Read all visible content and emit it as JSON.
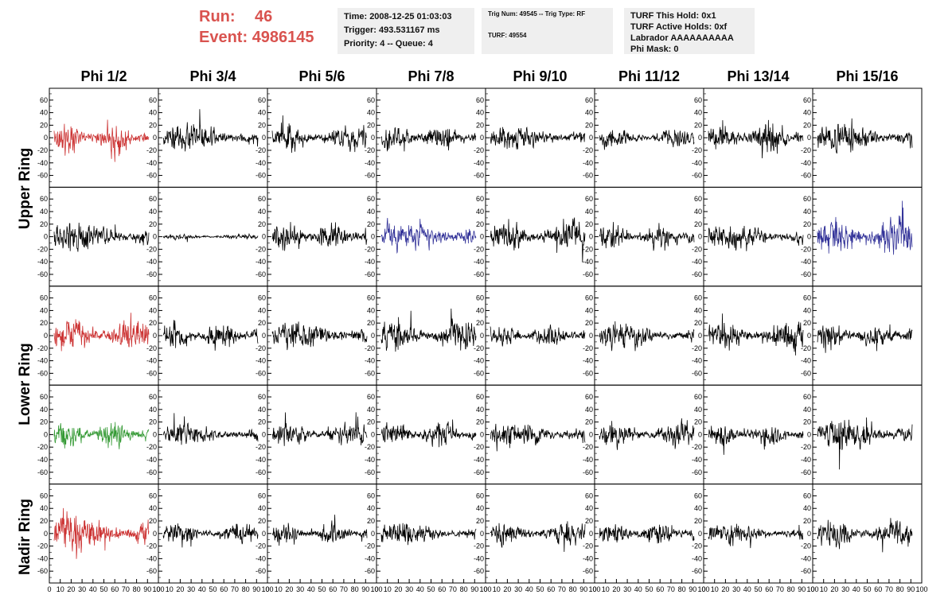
{
  "header": {
    "run_label": "Run:",
    "run_value": "46",
    "event_label": "Event:",
    "event_value": "4986145",
    "time": "Time: 2008-12-25 01:03:03",
    "trigger": "Trigger: 493.531167 ms",
    "priority": "Priority: 4 -- Queue: 4",
    "trig_num": "Trig Num: 49545 -- Trig Type: RF",
    "turf": "TURF: 49554",
    "turf_this_hold": "TURF This Hold: 0x1",
    "turf_active_holds": "TURF Active Holds: 0xf",
    "labrador": "Labrador AAAAAAAAAA",
    "phi_mask": "Phi Mask: 0"
  },
  "colors": {
    "red": "#cc3333",
    "blue": "#333399",
    "green": "#339933",
    "black": "#000000"
  },
  "chart_data": {
    "type": "line",
    "columns": [
      "Phi 1/2",
      "Phi 3/4",
      "Phi 5/6",
      "Phi 7/8",
      "Phi 9/10",
      "Phi 11/12",
      "Phi 13/14",
      "Phi 15/16"
    ],
    "ring_labels": [
      "Upper Ring",
      "Lower Ring",
      "Nadir Ring"
    ],
    "ylim": [
      -75,
      75
    ],
    "yticks": [
      -60,
      -40,
      -20,
      0,
      20,
      40,
      60
    ],
    "xlim": [
      0,
      100
    ],
    "xticks": [
      0,
      10,
      20,
      30,
      40,
      50,
      60,
      70,
      80,
      90,
      100
    ],
    "samples": 260,
    "traces": [
      {
        "row": 0,
        "col": 0,
        "color": "red",
        "amp": 13,
        "seed": 11
      },
      {
        "row": 0,
        "col": 1,
        "color": "black",
        "amp": 10,
        "seed": 12
      },
      {
        "row": 0,
        "col": 2,
        "color": "black",
        "amp": 10,
        "seed": 13
      },
      {
        "row": 0,
        "col": 3,
        "color": "black",
        "amp": 11,
        "seed": 14
      },
      {
        "row": 0,
        "col": 4,
        "color": "black",
        "amp": 9,
        "seed": 15
      },
      {
        "row": 0,
        "col": 5,
        "color": "black",
        "amp": 8,
        "seed": 16
      },
      {
        "row": 0,
        "col": 6,
        "color": "black",
        "amp": 11,
        "seed": 17
      },
      {
        "row": 0,
        "col": 7,
        "color": "black",
        "amp": 12,
        "seed": 18
      },
      {
        "row": 1,
        "col": 0,
        "color": "black",
        "amp": 12,
        "seed": 21
      },
      {
        "row": 1,
        "col": 1,
        "color": "black",
        "amp": 2,
        "seed": 22
      },
      {
        "row": 1,
        "col": 2,
        "color": "black",
        "amp": 11,
        "seed": 23
      },
      {
        "row": 1,
        "col": 3,
        "color": "blue",
        "amp": 12,
        "seed": 24
      },
      {
        "row": 1,
        "col": 4,
        "color": "black",
        "amp": 11,
        "seed": 25
      },
      {
        "row": 1,
        "col": 5,
        "color": "black",
        "amp": 10,
        "seed": 26
      },
      {
        "row": 1,
        "col": 6,
        "color": "black",
        "amp": 10,
        "seed": 27
      },
      {
        "row": 1,
        "col": 7,
        "color": "blue",
        "amp": 15,
        "seed": 28
      },
      {
        "row": 2,
        "col": 0,
        "color": "red",
        "amp": 13,
        "seed": 31
      },
      {
        "row": 2,
        "col": 1,
        "color": "black",
        "amp": 10,
        "seed": 32
      },
      {
        "row": 2,
        "col": 2,
        "color": "black",
        "amp": 11,
        "seed": 33
      },
      {
        "row": 2,
        "col": 3,
        "color": "black",
        "amp": 11,
        "seed": 34
      },
      {
        "row": 2,
        "col": 4,
        "color": "black",
        "amp": 8,
        "seed": 35
      },
      {
        "row": 2,
        "col": 5,
        "color": "black",
        "amp": 9,
        "seed": 36
      },
      {
        "row": 2,
        "col": 6,
        "color": "black",
        "amp": 11,
        "seed": 37
      },
      {
        "row": 2,
        "col": 7,
        "color": "black",
        "amp": 10,
        "seed": 38
      },
      {
        "row": 3,
        "col": 0,
        "color": "green",
        "amp": 11,
        "seed": 41
      },
      {
        "row": 3,
        "col": 1,
        "color": "black",
        "amp": 8,
        "seed": 42
      },
      {
        "row": 3,
        "col": 2,
        "color": "black",
        "amp": 9,
        "seed": 43
      },
      {
        "row": 3,
        "col": 3,
        "color": "black",
        "amp": 10,
        "seed": 44
      },
      {
        "row": 3,
        "col": 4,
        "color": "black",
        "amp": 10,
        "seed": 45
      },
      {
        "row": 3,
        "col": 5,
        "color": "black",
        "amp": 9,
        "seed": 46
      },
      {
        "row": 3,
        "col": 6,
        "color": "black",
        "amp": 9,
        "seed": 47
      },
      {
        "row": 3,
        "col": 7,
        "color": "black",
        "amp": 12,
        "seed": 48
      },
      {
        "row": 4,
        "col": 0,
        "color": "red",
        "amp": 14,
        "seed": 51
      },
      {
        "row": 4,
        "col": 1,
        "color": "black",
        "amp": 8,
        "seed": 52
      },
      {
        "row": 4,
        "col": 2,
        "color": "black",
        "amp": 9,
        "seed": 53
      },
      {
        "row": 4,
        "col": 3,
        "color": "black",
        "amp": 9,
        "seed": 54
      },
      {
        "row": 4,
        "col": 4,
        "color": "black",
        "amp": 9,
        "seed": 55
      },
      {
        "row": 4,
        "col": 5,
        "color": "black",
        "amp": 9,
        "seed": 56
      },
      {
        "row": 4,
        "col": 6,
        "color": "black",
        "amp": 8,
        "seed": 57
      },
      {
        "row": 4,
        "col": 7,
        "color": "black",
        "amp": 10,
        "seed": 58
      }
    ]
  }
}
